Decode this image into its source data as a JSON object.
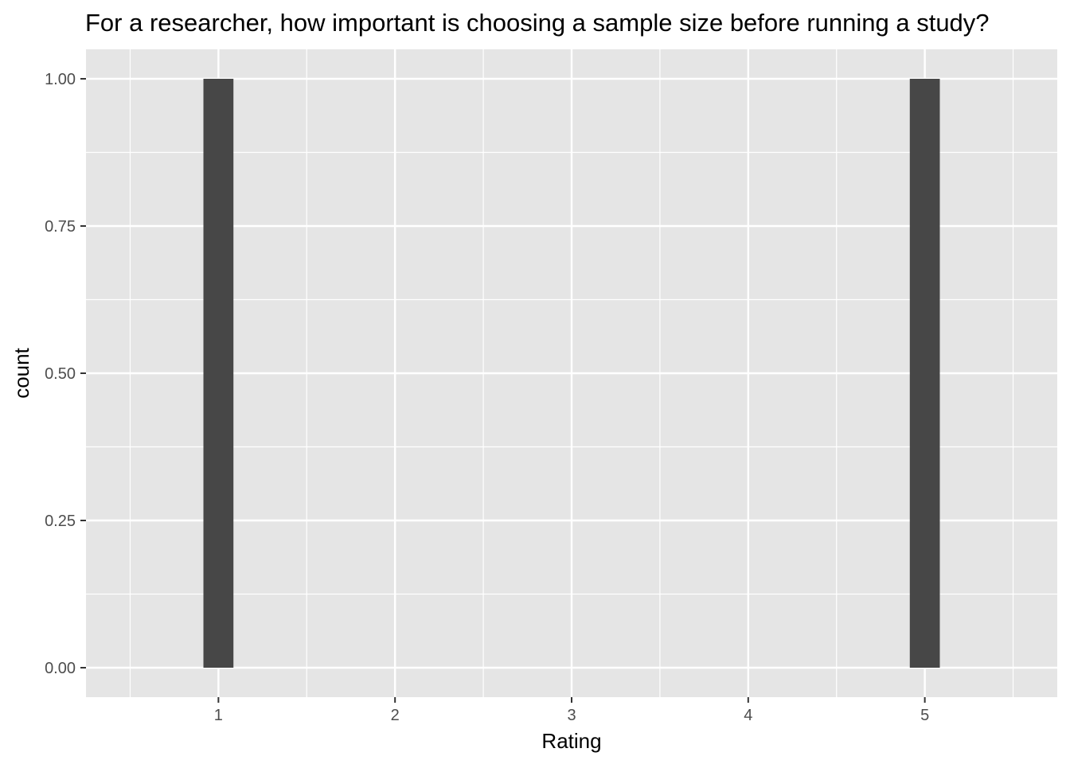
{
  "chart_data": {
    "type": "bar",
    "title": "For a researcher, how important is choosing a sample size before running a study?",
    "xlabel": "Rating",
    "ylabel": "count",
    "x": [
      1,
      2,
      3,
      4,
      5
    ],
    "values": [
      1,
      0,
      0,
      0,
      1
    ],
    "xlim": [
      0.25,
      5.75
    ],
    "ylim": [
      -0.05,
      1.05
    ],
    "x_ticks": [
      "1",
      "2",
      "3",
      "4",
      "5"
    ],
    "y_ticks": [
      "0.00",
      "0.25",
      "0.50",
      "0.75",
      "1.00"
    ],
    "grid": true,
    "legend": "none",
    "colors": {
      "panel_background": "#e5e5e5",
      "grid_line": "#ffffff",
      "bar_fill": "#474747",
      "tick_mark": "#333333",
      "tick_label": "#4d4d4d"
    }
  }
}
